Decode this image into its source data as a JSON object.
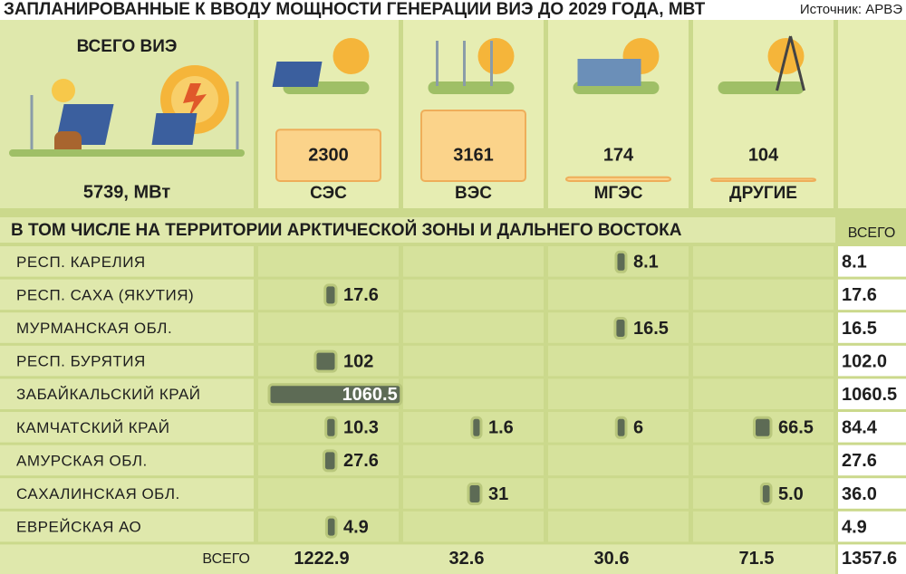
{
  "title": "ЗАПЛАНИРОВАННЫЕ К ВВОДУ МОЩНОСТИ ГЕНЕРАЦИИ ВИЭ ДО 2029 ГОДА, МВТ",
  "source": "Источник: АРВЭ",
  "total": {
    "label": "ВСЕГО ВИЭ",
    "value": "5739, МВт"
  },
  "types": [
    {
      "name": "СЭС",
      "value": 2300
    },
    {
      "name": "ВЭС",
      "value": 3161
    },
    {
      "name": "МГЭС",
      "value": 174
    },
    {
      "name": "ДРУГИЕ",
      "value": 104
    }
  ],
  "section_title": "В ТОМ ЧИСЛЕ НА ТЕРРИТОРИИ АРКТИЧЕСКОЙ ЗОНЫ И ДАЛЬНЕГО ВОСТОКА",
  "total_header": "ВСЕГО",
  "rows": [
    {
      "name": "РЕСП. КАРЕЛИЯ",
      "cells": [
        null,
        null,
        8.1,
        null
      ],
      "total": 8.1
    },
    {
      "name": "РЕСП. САХА (ЯКУТИЯ)",
      "cells": [
        17.6,
        null,
        null,
        null
      ],
      "total": 17.6
    },
    {
      "name": "МУРМАНСКАЯ ОБЛ.",
      "cells": [
        null,
        null,
        16.5,
        null
      ],
      "total": 16.5
    },
    {
      "name": "РЕСП. БУРЯТИЯ",
      "cells": [
        102,
        null,
        null,
        null
      ],
      "total": {
        "value": 102,
        "label": "102.0"
      }
    },
    {
      "name": "ЗАБАЙКАЛЬСКИЙ КРАЙ",
      "cells": [
        1060.5,
        null,
        null,
        null
      ],
      "total": 1060.5
    },
    {
      "name": "КАМЧАТСКИЙ КРАЙ",
      "cells": [
        10.3,
        1.6,
        6,
        66.5
      ],
      "total": 84.4
    },
    {
      "name": "АМУРСКАЯ ОБЛ.",
      "cells": [
        27.6,
        null,
        null,
        null
      ],
      "total": 27.6
    },
    {
      "name": "САХАЛИНСКАЯ ОБЛ.",
      "cells": [
        null,
        31,
        null,
        {
          "value": 5,
          "label": "5.0"
        }
      ],
      "total": {
        "value": 36,
        "label": "36.0"
      }
    },
    {
      "name": "ЕВРЕЙСКАЯ АО",
      "cells": [
        4.9,
        null,
        null,
        null
      ],
      "total": 4.9
    }
  ],
  "totals": {
    "label": "ВСЕГО",
    "values": [
      1222.9,
      32.6,
      30.6,
      71.5
    ],
    "grand": 1357.6
  }
}
